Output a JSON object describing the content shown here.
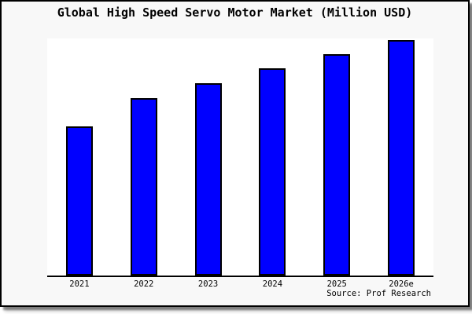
{
  "chart_data": {
    "type": "bar",
    "title": "Global High Speed Servo Motor Market (Million USD)",
    "categories": [
      "2021",
      "2022",
      "2023",
      "2024",
      "2025",
      "2026e"
    ],
    "values": [
      62.9,
      75.0,
      81.1,
      87.4,
      93.4,
      99.3
    ],
    "values_note": "relative bar heights as % of plot height; chart shows no y-axis ticks, labels or gridlines",
    "ylim": [
      0,
      100
    ],
    "xlabel": "",
    "ylabel": "",
    "grid": false,
    "legend": false,
    "bar_color": "#0000ff",
    "bar_edge_color": "#000000",
    "plot_background": "#ffffff",
    "card_background": "#f8f8f8"
  },
  "source_note": "Source: Prof Research"
}
